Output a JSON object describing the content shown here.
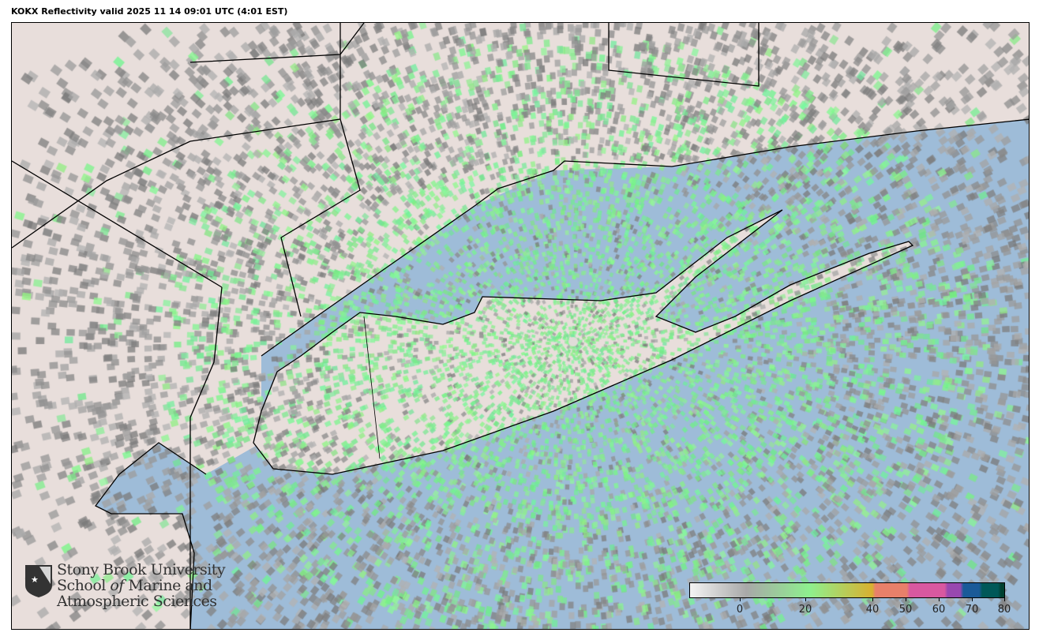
{
  "title": "KOKX Reflectivity valid 2025 11 14 09:01 UTC (4:01 EST)",
  "logo": {
    "line1": "Stony Brook University",
    "line2_pre": "School ",
    "line2_of": "of",
    "line2_post": " Marine and",
    "line3": "Atmospheric Sciences"
  },
  "colorbar": {
    "ticks": [
      {
        "value": 0,
        "label": "0"
      },
      {
        "value": 20,
        "label": "20"
      },
      {
        "value": 40,
        "label": "40"
      },
      {
        "value": 50,
        "label": "50"
      },
      {
        "value": 60,
        "label": "60"
      },
      {
        "value": 70,
        "label": "70"
      },
      {
        "value": 80,
        "label": "80"
      }
    ],
    "colors": [
      "#f4f4f4",
      "#a8a8a8",
      "#8ef08e",
      "#d8b030",
      "#e8806a",
      "#d858a0",
      "#9848b0",
      "#1a5a98",
      "#005858",
      "#004030"
    ]
  },
  "colors": {
    "ocean": "#9ebcd8",
    "land": "#e8dedb",
    "echo_near": "#8ef294",
    "echo_far": "#8c8c8c"
  }
}
